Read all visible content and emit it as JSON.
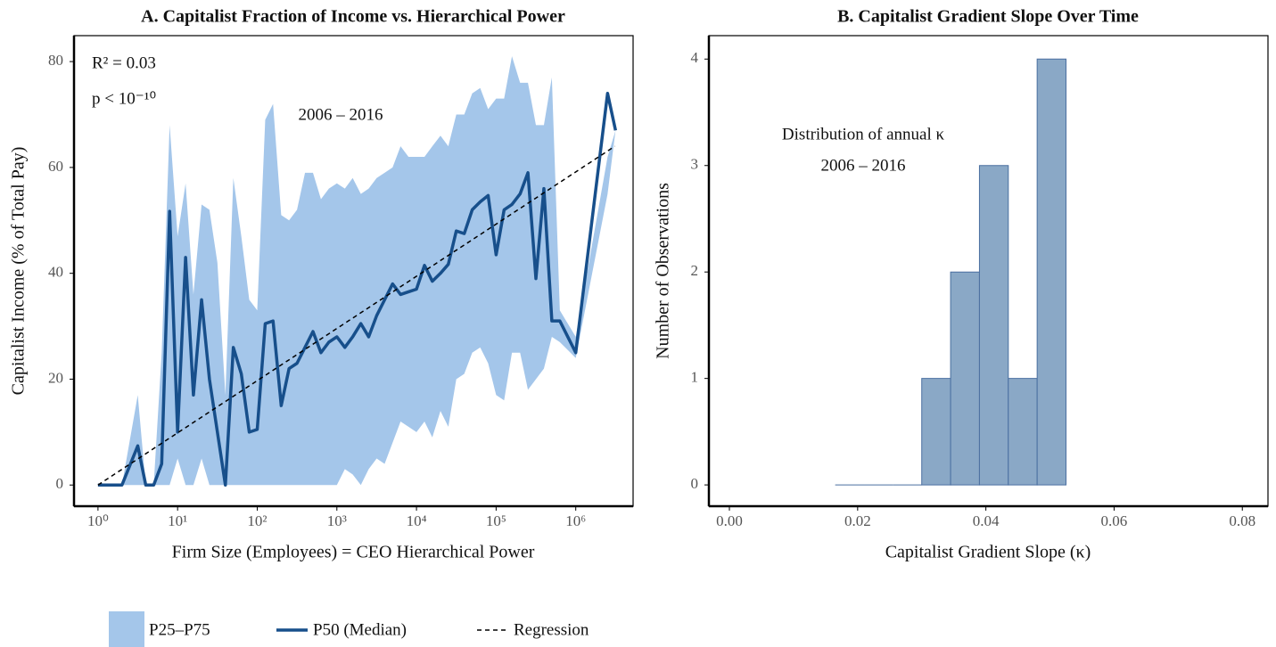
{
  "chart_data": [
    {
      "type": "line",
      "title": "A.  Capitalist Fraction of Income vs. Hierarchical Power",
      "xlabel": "Firm Size (Employees) = CEO Hierarchical Power",
      "ylabel": "Capitalist Income (% of Total Pay)",
      "xscale": "log",
      "xlim": [
        0.5,
        5250000
      ],
      "ylim": [
        -4,
        84.9
      ],
      "xticks": [
        {
          "value": 1,
          "label": "10⁰"
        },
        {
          "value": 10,
          "label": "10¹"
        },
        {
          "value": 100,
          "label": "10²"
        },
        {
          "value": 1000,
          "label": "10³"
        },
        {
          "value": 10000,
          "label": "10⁴"
        },
        {
          "value": 100000,
          "label": "10⁵"
        },
        {
          "value": 1000000,
          "label": "10⁶"
        }
      ],
      "yticks": [
        0,
        20,
        40,
        60,
        80
      ],
      "annotations": [
        "R² = 0.03",
        "p < 10⁻¹⁰",
        "2006 – 2016"
      ],
      "x": [
        1,
        2,
        3.16,
        3.98,
        5.01,
        6.31,
        7.94,
        10,
        12.6,
        15.8,
        20,
        25.1,
        31.6,
        39.8,
        50.1,
        63.1,
        79.4,
        100,
        126,
        158,
        200,
        251,
        316,
        398,
        501,
        631,
        794,
        1000,
        1260,
        1580,
        2000,
        2510,
        3160,
        3980,
        5010,
        6310,
        7940,
        10000,
        12600,
        15800,
        20000,
        25100,
        31600,
        39800,
        50100,
        63100,
        79400,
        100000,
        126000,
        158000,
        200000,
        251000,
        316000,
        398000,
        501000,
        631000,
        1000000,
        2510000,
        3160000
      ],
      "series": [
        {
          "name": "P25–P75",
          "color": "#a4c6ea",
          "lower": [
            0,
            0,
            0,
            0,
            0,
            0,
            0,
            5,
            0,
            0,
            5,
            0,
            0,
            0,
            0,
            0,
            0,
            0,
            0,
            0,
            0,
            0,
            0,
            0,
            0,
            0,
            0,
            0,
            3,
            2,
            0,
            3,
            5,
            4,
            8,
            12,
            11,
            10,
            12,
            9,
            14,
            11,
            20,
            21,
            25,
            26,
            23,
            17,
            16,
            25,
            25,
            18,
            20,
            22,
            28,
            27,
            24,
            55,
            67
          ],
          "upper": [
            0,
            0,
            17,
            0,
            0,
            25,
            68,
            47,
            57,
            36,
            53,
            52,
            42,
            17,
            58,
            47,
            35,
            33,
            69,
            72,
            51,
            50,
            52,
            59,
            59,
            54,
            56,
            57,
            56,
            58,
            55,
            56,
            58,
            59,
            60,
            64,
            62,
            62,
            62,
            64,
            66,
            64,
            70,
            70,
            74,
            75,
            71,
            73,
            73,
            81,
            76,
            76,
            68,
            68,
            77,
            33,
            28,
            62,
            67
          ]
        },
        {
          "name": "P50 (Median)",
          "color": "#174f8b",
          "values": [
            0,
            0,
            7.4,
            0,
            0,
            4,
            51.7,
            10,
            43,
            17,
            35,
            20,
            10,
            0,
            26,
            21,
            10,
            10.5,
            30.5,
            31,
            15,
            22,
            23,
            26,
            29,
            25,
            27,
            28,
            26,
            28,
            30.5,
            28,
            32,
            35,
            38,
            36,
            36.5,
            37,
            41.5,
            38.5,
            40,
            41.7,
            48,
            47.5,
            52,
            53.5,
            54.7,
            43.5,
            52,
            53,
            55,
            59,
            39,
            56,
            31,
            31,
            25,
            74,
            67
          ]
        },
        {
          "name": "Regression",
          "color": "#000000",
          "dash": true,
          "x": [
            1,
            3100000
          ],
          "values": [
            0,
            64
          ]
        }
      ]
    },
    {
      "type": "histogram",
      "title": "B.  Capitalist Gradient Slope Over Time",
      "xlabel": "Capitalist Gradient Slope (κ)",
      "ylabel": "Number of Observations",
      "xlim": [
        -0.0032,
        0.084
      ],
      "ylim": [
        -0.2,
        4.22
      ],
      "xticks": [
        {
          "value": 0,
          "label": "0.00"
        },
        0.02,
        0.04,
        0.06,
        0.08
      ],
      "yticks": [
        0,
        1,
        2,
        3,
        4
      ],
      "annotations": [
        "Distribution of annual κ",
        "2006 – 2016"
      ],
      "bins": [
        0.0165,
        0.021,
        0.0255,
        0.03,
        0.0345,
        0.039,
        0.0435,
        0.048,
        0.0525
      ],
      "values": [
        0,
        0,
        0,
        1,
        2,
        3,
        1,
        4
      ],
      "color": "#8aa8c6",
      "edgecolor": "#4a6fa0"
    }
  ]
}
